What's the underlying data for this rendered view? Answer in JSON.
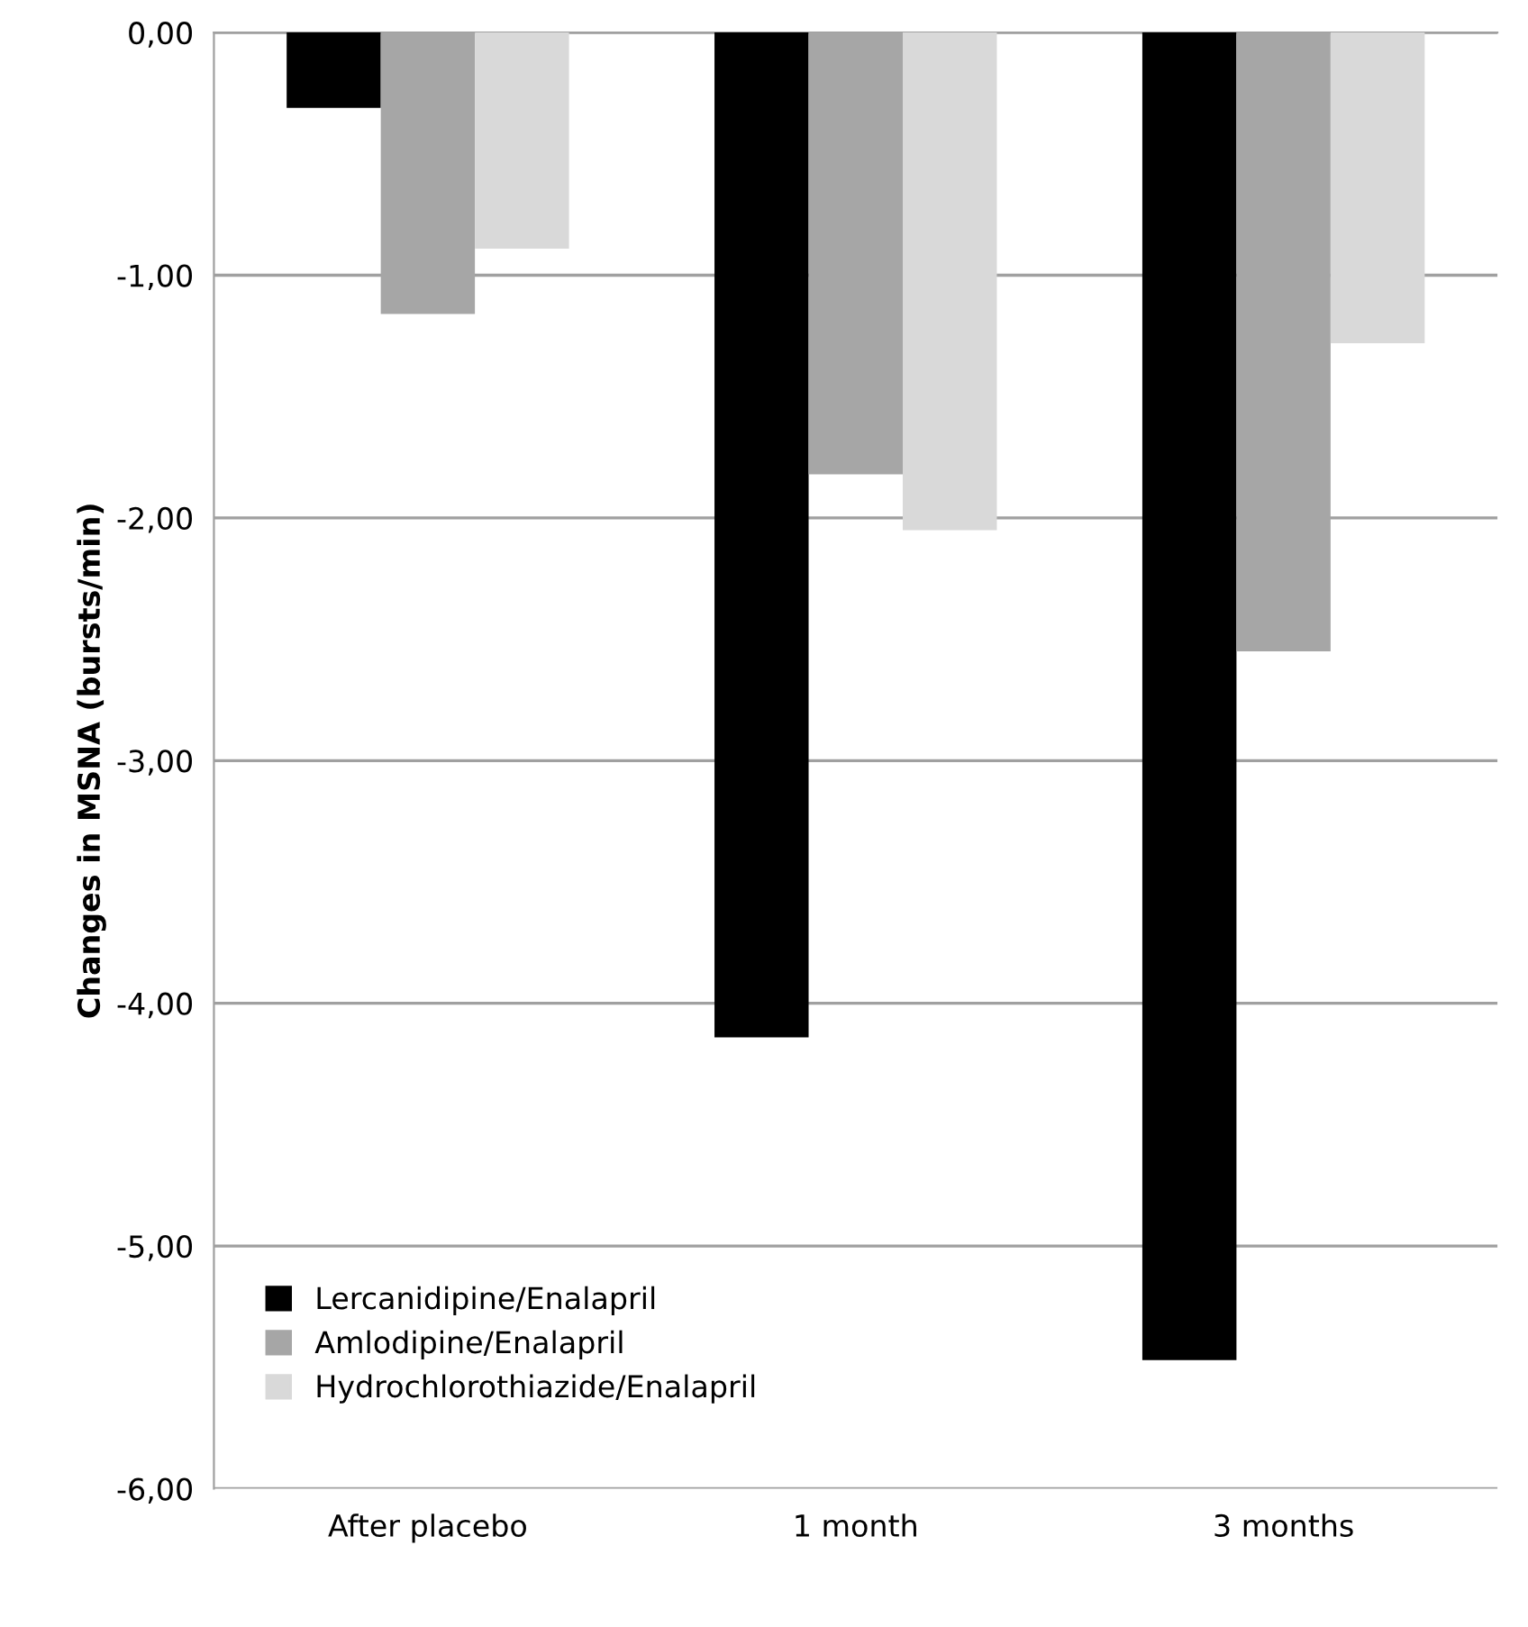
{
  "chart_data": {
    "type": "bar",
    "ylabel": "Changes in MSNA (bursts/min)",
    "categories": [
      "After placebo",
      "1 month",
      "3 months"
    ],
    "series": [
      {
        "name": "Lercanidipine/Enalapril",
        "color": "#000000",
        "values": [
          -0.31,
          -4.14,
          -5.47
        ]
      },
      {
        "name": "Amlodipine/Enalapril",
        "color": "#a6a6a6",
        "values": [
          -1.16,
          -1.82,
          -2.55
        ]
      },
      {
        "name": "Hydrochlorothiazide/Enalapril",
        "color": "#d9d9d9",
        "values": [
          -0.89,
          -2.05,
          -1.28
        ]
      }
    ],
    "ylim": [
      -6,
      0
    ],
    "yticks": [
      {
        "value": -6,
        "label": "-6,00"
      },
      {
        "value": -5,
        "label": "-5,00"
      },
      {
        "value": -4,
        "label": "-4,00"
      },
      {
        "value": -3,
        "label": "-3,00"
      },
      {
        "value": -2,
        "label": "-2,00"
      },
      {
        "value": -1,
        "label": "-1,00"
      },
      {
        "value": 0,
        "label": "0,00"
      }
    ],
    "grid": "y",
    "legend": "bottom left"
  }
}
